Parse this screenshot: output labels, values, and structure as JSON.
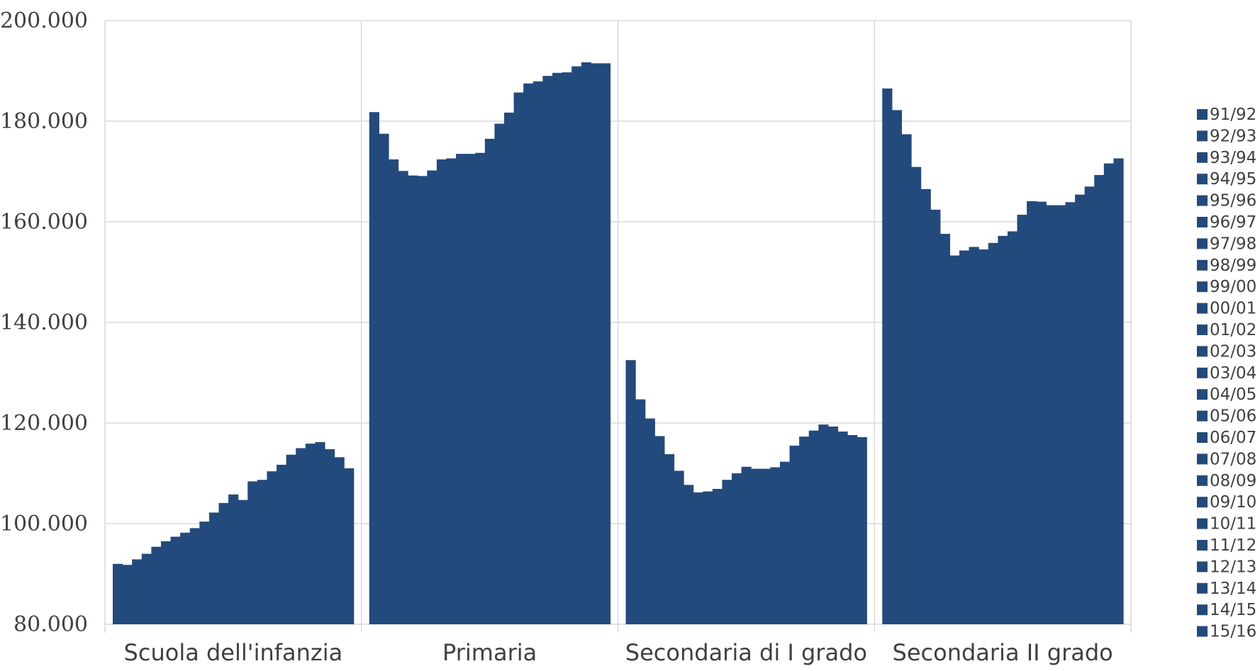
{
  "chart_data": {
    "type": "bar",
    "title": "",
    "xlabel": "",
    "ylabel": "",
    "ylim": [
      80000,
      200000
    ],
    "y_ticks": [
      "80.000",
      "100.000",
      "120.000",
      "140.000",
      "160.000",
      "180.000",
      "200.000"
    ],
    "y_tick_values": [
      80000,
      100000,
      120000,
      140000,
      160000,
      180000,
      200000
    ],
    "grid": true,
    "legend_position": "right",
    "bar_color": "#234a7c",
    "categories": [
      "Scuola dell'infanzia",
      "Primaria",
      "Secondaria di I grado",
      "Secondaria II grado"
    ],
    "series_names": [
      "91/92",
      "92/93",
      "93/94",
      "94/95",
      "95/96",
      "96/97",
      "97/98",
      "98/99",
      "99/00",
      "00/01",
      "01/02",
      "02/03",
      "03/04",
      "04/05",
      "05/06",
      "06/07",
      "07/08",
      "08/09",
      "09/10",
      "10/11",
      "11/12",
      "12/13",
      "13/14",
      "14/15",
      "15/16"
    ],
    "values": [
      [
        92000,
        91800,
        92900,
        94000,
        95400,
        96500,
        97400,
        98200,
        99100,
        100400,
        102200,
        104100,
        105800,
        104700,
        108400,
        108700,
        110400,
        111700,
        113700,
        115000,
        115900,
        116200,
        114800,
        113200,
        111000
      ],
      [
        181800,
        177500,
        172400,
        170100,
        169200,
        169100,
        170200,
        172400,
        172600,
        173500,
        173500,
        173700,
        176500,
        179500,
        181700,
        185700,
        187500,
        187900,
        189000,
        189600,
        189700,
        190900,
        191700,
        191500,
        191500
      ],
      [
        132500,
        124700,
        120900,
        117400,
        113800,
        110500,
        107700,
        106200,
        106400,
        106900,
        108700,
        110000,
        111300,
        110900,
        110900,
        111200,
        112300,
        115500,
        117300,
        118500,
        119700,
        119300,
        118300,
        117600,
        117200
      ],
      [
        186500,
        182200,
        177400,
        170900,
        166500,
        162400,
        157600,
        153300,
        154300,
        155000,
        154500,
        155800,
        157200,
        158100,
        161400,
        164100,
        164000,
        163300,
        163300,
        163900,
        165400,
        167000,
        169300,
        171600,
        172600
      ]
    ]
  }
}
